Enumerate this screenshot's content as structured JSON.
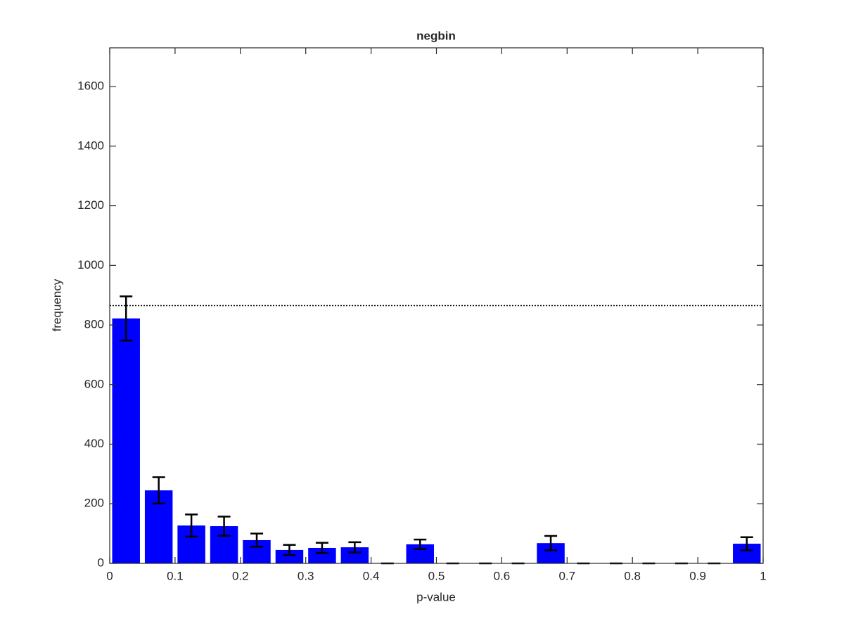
{
  "chart_data": {
    "type": "histogram",
    "title": "negbin",
    "x_label": "p-value",
    "y_label": "frequency",
    "bins": [
      0,
      0.05,
      0.1,
      0.15,
      0.2,
      0.25,
      0.3,
      0.35,
      0.4,
      0.45,
      0.5,
      0.55,
      0.6,
      0.65,
      0.7,
      0.75,
      0.8,
      0.85,
      0.9,
      0.95,
      1
    ],
    "values": [
      822,
      245,
      127,
      125,
      78,
      45,
      52,
      54,
      0,
      64,
      0,
      0,
      0,
      68,
      0,
      0,
      0,
      0,
      0,
      66
    ],
    "errors": [
      74,
      44,
      37,
      32,
      22,
      17,
      17,
      17,
      0,
      16,
      0,
      0,
      0,
      24,
      0,
      0,
      0,
      0,
      0,
      22
    ],
    "color": "#0000ff",
    "error_color": "#000000",
    "reference_line": 865,
    "xlim": [
      0,
      1
    ],
    "xticks": [
      0,
      0.1,
      0.2,
      0.3,
      0.4,
      0.5,
      0.6,
      0.7,
      0.8,
      0.9,
      1
    ],
    "ylim": [
      0,
      1730
    ],
    "yticks": [
      0,
      200,
      400,
      600,
      800,
      1000,
      1200,
      1400,
      1600
    ],
    "grid": false
  }
}
